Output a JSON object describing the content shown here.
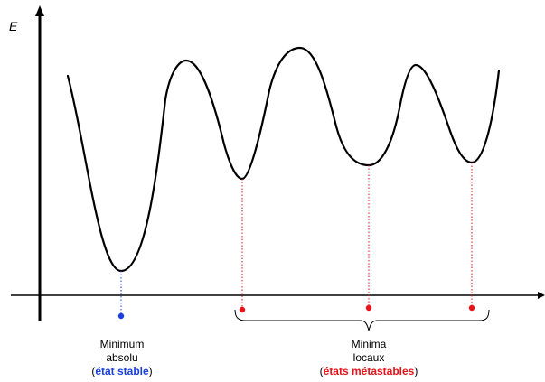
{
  "diagram": {
    "y_axis_label": "E",
    "stable": {
      "line1": "Minimum",
      "line2": "absolu",
      "paren_open": "(",
      "emph": "état stable",
      "paren_close": ")"
    },
    "metastable": {
      "line1": "Minima",
      "line2": "locaux",
      "paren_open": "(",
      "emph": "états métastables",
      "paren_close": ")"
    },
    "colors": {
      "stable": "#1a3fe0",
      "metastable": "#e8121b",
      "curve": "#000000"
    }
  }
}
